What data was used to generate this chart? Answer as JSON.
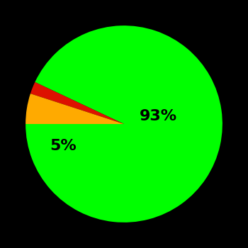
{
  "slices": [
    93,
    2,
    5
  ],
  "colors": [
    "#00ff00",
    "#dd1100",
    "#ffaa00"
  ],
  "labels": [
    "93%",
    "",
    "5%"
  ],
  "background_color": "#000000",
  "label_fontsize": 16,
  "label_color": "#000000",
  "startangle": 180,
  "figsize": [
    3.5,
    3.5
  ],
  "dpi": 100,
  "label_positions": {
    "0": [
      0.35,
      0.08
    ],
    "2": [
      -0.62,
      -0.22
    ]
  }
}
